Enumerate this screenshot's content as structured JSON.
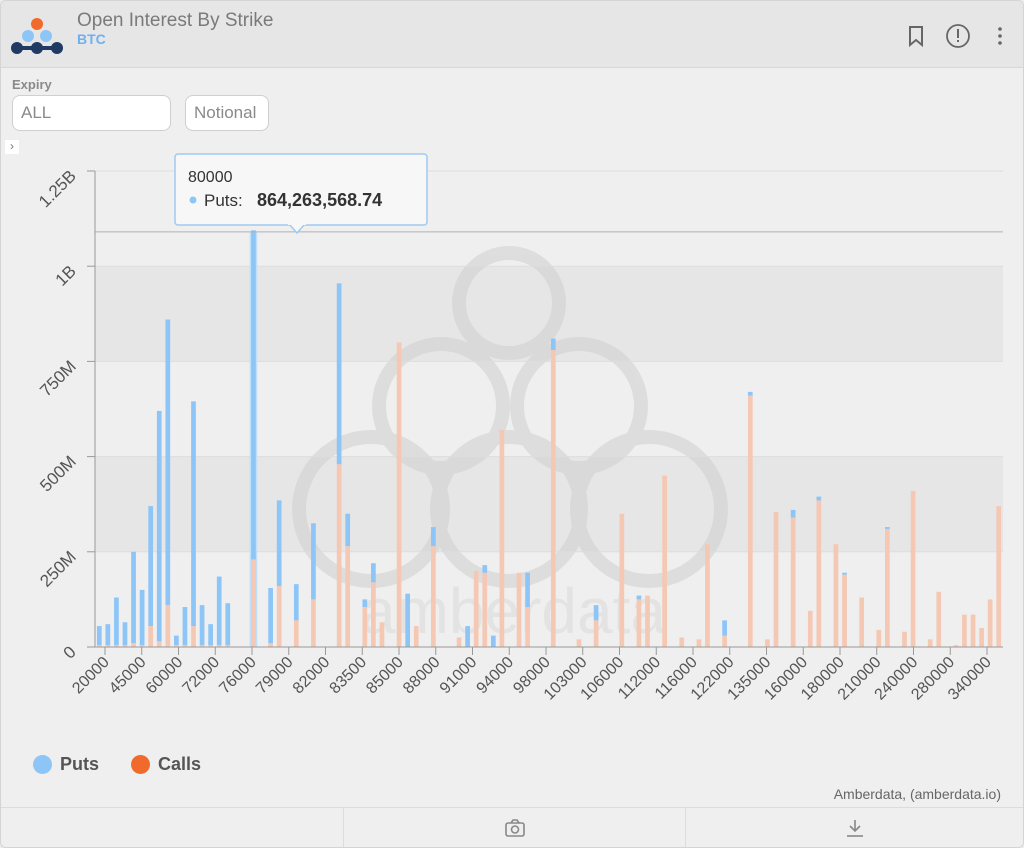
{
  "header": {
    "title": "Open Interest By Strike",
    "subtitle": "BTC"
  },
  "controls": {
    "expiry_label": "Expiry",
    "expiry_value": "ALL",
    "unit_value": "Notional"
  },
  "icons": {
    "logo": "amberdata-logo-icon",
    "bookmark": "bookmark-icon",
    "info": "info-icon",
    "menu": "more-vertical-icon",
    "collapse": "chevron-right-icon",
    "camera": "camera-icon",
    "download": "download-icon"
  },
  "colors": {
    "puts": "#8ec5f7",
    "calls": "#f5c8b4",
    "calls_legend": "#f26a2b",
    "highlight": "#bfe0fb"
  },
  "tooltip": {
    "title": "80000",
    "series": "Puts",
    "value": "864,263,568.74"
  },
  "credits": "Amberdata, (amberdata.io)",
  "chart_data": {
    "type": "bar",
    "stacked": true,
    "title": "",
    "xlabel": "",
    "ylabel": "",
    "ylim": [
      0,
      1250000000
    ],
    "yticks": [
      0,
      250000000,
      500000000,
      750000000,
      1000000000,
      1250000000
    ],
    "ytick_labels": [
      "0",
      "250M",
      "500M",
      "750M",
      "1B",
      "1.25B"
    ],
    "xtick_labels": [
      "20000",
      "45000",
      "60000",
      "72000",
      "76000",
      "79000",
      "82000",
      "83500",
      "85000",
      "88000",
      "91000",
      "94000",
      "98000",
      "103000",
      "106000",
      "112000",
      "116000",
      "122000",
      "135000",
      "160000",
      "180000",
      "210000",
      "240000",
      "280000",
      "340000"
    ],
    "legend": {
      "position": "bottom-left",
      "items": [
        "Puts",
        "Calls"
      ]
    },
    "highlight_index": 18,
    "crosshair_value": 1090000000,
    "series": [
      {
        "name": "Puts",
        "values": [
          50000000,
          55000000,
          125000000,
          60000000,
          240000000,
          145000000,
          315000000,
          605000000,
          750000000,
          25000000,
          100000000,
          590000000,
          105000000,
          55000000,
          180000000,
          110000000,
          0,
          0,
          864263568.74,
          0,
          145000000,
          225000000,
          0,
          95000000,
          0,
          200000000,
          0,
          0,
          475000000,
          85000000,
          0,
          20000000,
          50000000,
          0,
          0,
          0,
          140000000,
          0,
          0,
          50000000,
          0,
          0,
          0,
          55000000,
          0,
          20000000,
          30000000,
          0,
          0,
          0,
          90000000,
          0,
          0,
          30000000,
          0,
          0,
          0,
          0,
          40000000,
          0,
          0,
          0,
          0,
          10000000,
          0,
          0,
          0,
          0,
          0,
          0,
          0,
          0,
          0,
          40000000,
          0,
          0,
          10000000,
          0,
          0,
          0,
          0,
          20000000,
          0,
          0,
          10000000,
          0,
          0,
          5000000,
          0,
          0,
          0,
          0,
          5000000,
          0,
          0,
          0,
          0,
          0,
          0,
          0,
          0,
          0,
          0,
          0,
          0,
          0
        ]
      },
      {
        "name": "Calls",
        "values": [
          5000000,
          5000000,
          5000000,
          5000000,
          10000000,
          5000000,
          55000000,
          15000000,
          110000000,
          5000000,
          5000000,
          55000000,
          5000000,
          5000000,
          5000000,
          5000000,
          0,
          0,
          230000000,
          0,
          10000000,
          160000000,
          0,
          70000000,
          0,
          125000000,
          0,
          0,
          480000000,
          265000000,
          0,
          105000000,
          170000000,
          65000000,
          0,
          800000000,
          0,
          55000000,
          0,
          265000000,
          0,
          0,
          25000000,
          0,
          200000000,
          195000000,
          0,
          570000000,
          0,
          195000000,
          105000000,
          0,
          0,
          780000000,
          0,
          0,
          20000000,
          0,
          70000000,
          0,
          0,
          350000000,
          0,
          125000000,
          135000000,
          0,
          450000000,
          0,
          25000000,
          0,
          20000000,
          270000000,
          0,
          30000000,
          0,
          0,
          660000000,
          0,
          20000000,
          355000000,
          0,
          340000000,
          0,
          95000000,
          385000000,
          0,
          270000000,
          190000000,
          0,
          130000000,
          0,
          45000000,
          310000000,
          0,
          40000000,
          410000000,
          0,
          20000000,
          145000000,
          0,
          5000000,
          85000000,
          85000000,
          50000000,
          125000000,
          370000000,
          5000000,
          90000000
        ]
      }
    ]
  }
}
